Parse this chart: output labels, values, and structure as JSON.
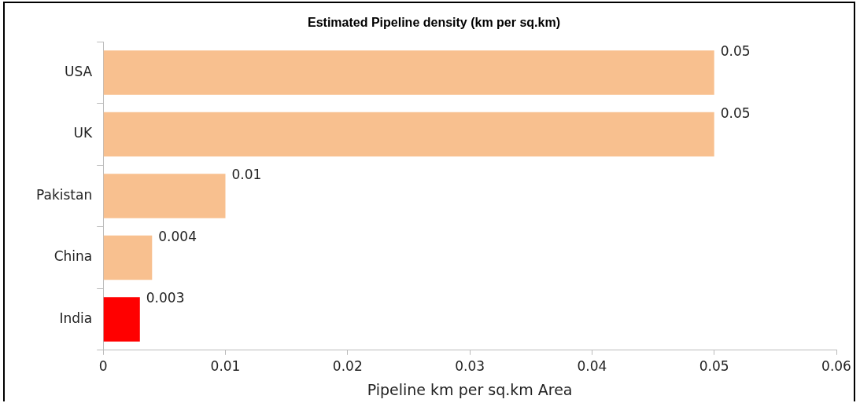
{
  "chart_data": {
    "type": "bar",
    "orientation": "horizontal",
    "title": "Estimated Pipeline density (km per sq.km)",
    "xlabel": "Pipeline km per sq.km Area",
    "categories": [
      "USA",
      "UK",
      "Pakistan",
      "China",
      "India"
    ],
    "values": [
      0.05,
      0.05,
      0.01,
      0.004,
      0.003
    ],
    "colors": [
      "#f8c08f",
      "#f8c08f",
      "#f8c08f",
      "#f8c08f",
      "#ff0000"
    ],
    "xlim": [
      0,
      0.06
    ],
    "xticks": [
      0,
      0.01,
      0.02,
      0.03,
      0.04,
      0.05,
      0.06
    ],
    "data_labels": true,
    "legend": false
  }
}
